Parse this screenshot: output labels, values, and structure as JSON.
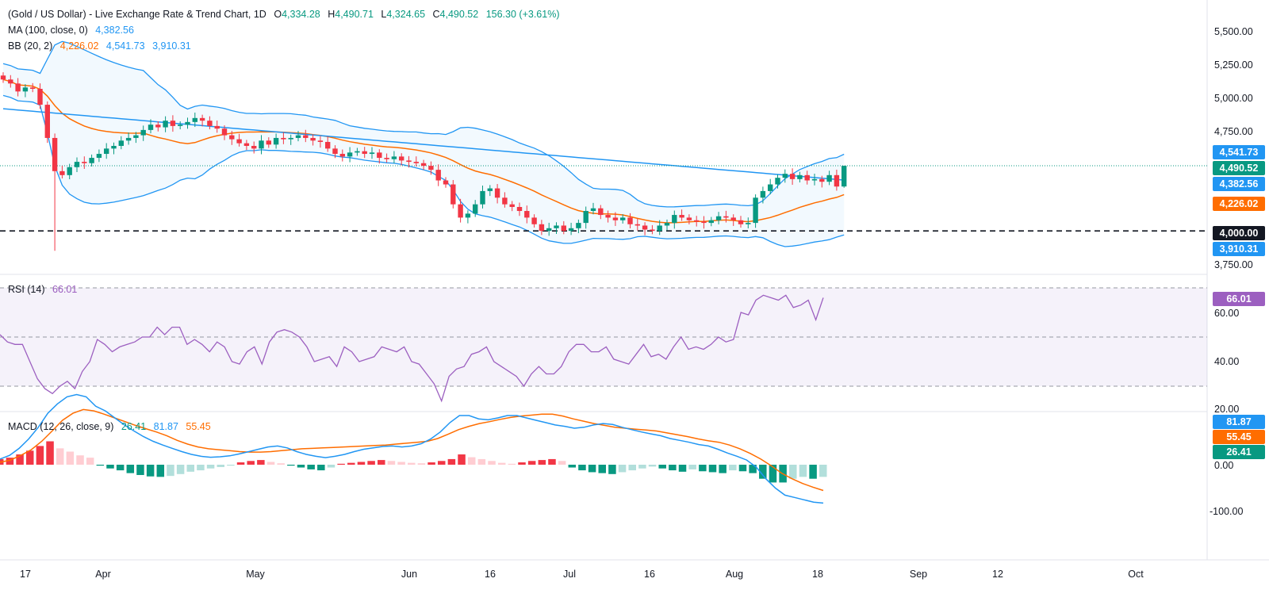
{
  "header": {
    "symbol": "(Gold / US Dollar) - Live Exchange Rate & Trend Chart, 1D",
    "open_label": "O",
    "open": "4,334.28",
    "high_label": "H",
    "high": "4,490.71",
    "low_label": "L",
    "low": "4,324.65",
    "close_label": "C",
    "close": "4,490.52",
    "change": "156.30 (+3.61%)"
  },
  "ma_legend": {
    "name": "MA (100, close, 0)",
    "value": "4,382.56"
  },
  "bb_legend": {
    "name": "BB (20, 2)",
    "basis": "4,226.02",
    "upper": "4,541.73",
    "lower": "3,910.31"
  },
  "rsi_legend": {
    "name": "RSI (14)",
    "value": "66.01"
  },
  "macd_legend": {
    "name": "MACD (12, 26, close, 9)",
    "hist": "26.41",
    "macd": "81.87",
    "signal": "55.45"
  },
  "price_axis": [
    "5,500.00",
    "5,250.00",
    "5,000.00",
    "4,750.00",
    "3,750.00"
  ],
  "price_tags": {
    "upper": "4,541.73",
    "close": "4,490.52",
    "ma": "4,382.56",
    "basis": "4,226.02",
    "level": "4,000.00",
    "lower": "3,910.31"
  },
  "rsi_axis": [
    "60.00",
    "40.00",
    "20.00"
  ],
  "rsi_tag": "66.01",
  "macd_axis": [
    "0.00",
    "-100.00"
  ],
  "macd_tags": {
    "macd": "81.87",
    "signal": "55.45",
    "hist": "26.41"
  },
  "x_axis": [
    "17",
    "Apr",
    "May",
    "Jun",
    "16",
    "Jul",
    "16",
    "Aug",
    "18",
    "Sep",
    "12",
    "Oct"
  ],
  "colors": {
    "up": "#089981",
    "down": "#f23645",
    "ma": "#2196f3",
    "bb_basis": "#ff6d00",
    "bb_band": "#2196f3",
    "rsi": "#9c5fc0",
    "macd": "#2196f3",
    "signal": "#ff6d00"
  },
  "chart_data": [
    {
      "type": "candlestick",
      "title": "Gold / US Dollar, 1D",
      "ylim": [
        3700,
        5600
      ],
      "horizontal_level": 4000,
      "last": {
        "open": 4334.28,
        "high": 4490.71,
        "low": 4324.65,
        "close": 4490.52
      },
      "close_series_approx": [
        5140,
        5110,
        5050,
        5080,
        5070,
        4950,
        4700,
        4450,
        4420,
        4480,
        4520,
        4510,
        4550,
        4580,
        4620,
        4640,
        4680,
        4700,
        4720,
        4760,
        4800,
        4780,
        4830,
        4790,
        4800,
        4820,
        4850,
        4830,
        4790,
        4770,
        4720,
        4690,
        4660,
        4640,
        4620,
        4680,
        4650,
        4700,
        4690,
        4700,
        4720,
        4700,
        4680,
        4670,
        4620,
        4580,
        4560,
        4590,
        4600,
        4580,
        4590,
        4550,
        4540,
        4560,
        4530,
        4520,
        4510,
        4490,
        4460,
        4380,
        4350,
        4200,
        4100,
        4130,
        4200,
        4300,
        4320,
        4250,
        4200,
        4180,
        4150,
        4100,
        4050,
        4000,
        4020,
        4040,
        4000,
        4020,
        4060,
        4150,
        4170,
        4120,
        4100,
        4080,
        4100,
        4050,
        4040,
        4010,
        4000,
        4040,
        4060,
        4120,
        4100,
        4080,
        4070,
        4060,
        4080,
        4110,
        4100,
        4080,
        4050,
        4060,
        4250,
        4300,
        4350,
        4400,
        4430,
        4390,
        4420,
        4380,
        4390,
        4370,
        4420,
        4334,
        4490
      ],
      "series": [
        {
          "name": "MA (100, close, 0)",
          "last": 4382.56
        },
        {
          "name": "BB (20, 2)",
          "basis_last": 4226.02,
          "upper_last": 4541.73,
          "lower_last": 3910.31
        }
      ]
    },
    {
      "type": "line",
      "title": "RSI (14)",
      "ylim": [
        18,
        72
      ],
      "bands": [
        30,
        50,
        70
      ],
      "last": 66.01,
      "values": [
        51,
        48,
        47,
        47,
        40,
        33,
        29,
        27,
        30,
        32,
        29,
        36,
        40,
        49,
        47,
        44,
        46,
        47,
        48,
        50,
        50,
        54,
        51,
        54,
        54,
        47,
        49,
        47,
        44,
        48,
        46,
        40,
        39,
        44,
        46,
        39,
        48,
        52,
        53,
        52,
        50,
        46,
        40,
        41,
        42,
        38,
        46,
        44,
        40,
        41,
        42,
        46,
        45,
        44,
        46,
        40,
        39,
        35,
        31,
        24,
        34,
        37,
        38,
        43,
        44,
        46,
        40,
        38,
        36,
        34,
        30,
        35,
        38,
        35,
        35,
        38,
        44,
        47,
        47,
        44,
        44,
        46,
        41,
        40,
        39,
        43,
        47,
        42,
        43,
        41,
        46,
        50,
        45,
        46,
        45,
        47,
        50,
        48,
        49,
        60,
        59,
        65,
        67,
        66,
        65,
        67,
        62,
        63,
        65,
        57,
        66
      ]
    },
    {
      "type": "line",
      "title": "MACD (12, 26, close, 9)",
      "ylim": [
        -160,
        110
      ],
      "last": {
        "macd": 81.87,
        "signal": 55.45,
        "histogram": 26.41
      },
      "macd": [
        -12,
        -20,
        -35,
        -55,
        -80,
        -110,
        -130,
        -145,
        -150,
        -145,
        -125,
        -115,
        -100,
        -85,
        -72,
        -60,
        -50,
        -42,
        -35,
        -28,
        -22,
        -18,
        -16,
        -17,
        -19,
        -23,
        -28,
        -33,
        -38,
        -40,
        -36,
        -28,
        -22,
        -18,
        -15,
        -18,
        -22,
        -28,
        -33,
        -36,
        -39,
        -40,
        -38,
        -40,
        -45,
        -55,
        -70,
        -90,
        -105,
        -105,
        -98,
        -96,
        -100,
        -105,
        -105,
        -100,
        -95,
        -90,
        -85,
        -82,
        -78,
        -80,
        -85,
        -88,
        -86,
        -80,
        -75,
        -70,
        -66,
        -62,
        -56,
        -52,
        -48,
        -43,
        -40,
        -33,
        -25,
        -18,
        -10,
        5,
        30,
        50,
        65,
        70,
        75,
        80,
        82
      ],
      "signal": [
        -5,
        -10,
        -20,
        -32,
        -50,
        -72,
        -95,
        -110,
        -118,
        -115,
        -108,
        -100,
        -92,
        -84,
        -77,
        -70,
        -62,
        -52,
        -44,
        -38,
        -34,
        -32,
        -30,
        -28,
        -27,
        -27,
        -28,
        -30,
        -32,
        -34,
        -35,
        -36,
        -37,
        -38,
        -39,
        -40,
        -41,
        -42,
        -44,
        -46,
        -48,
        -50,
        -56,
        -65,
        -75,
        -82,
        -88,
        -92,
        -97,
        -101,
        -104,
        -106,
        -108,
        -108,
        -104,
        -98,
        -93,
        -88,
        -84,
        -80,
        -78,
        -76,
        -74,
        -72,
        -68,
        -64,
        -60,
        -55,
        -51,
        -48,
        -42,
        -34,
        -24,
        -12,
        2,
        18,
        30,
        40,
        48,
        55
      ],
      "histogram": [
        -12,
        -15,
        -22,
        -30,
        -40,
        -50,
        -35,
        -28,
        -20,
        -15,
        2,
        8,
        12,
        18,
        22,
        25,
        26,
        24,
        20,
        15,
        12,
        8,
        5,
        2,
        -5,
        -8,
        -10,
        -6,
        -3,
        2,
        6,
        10,
        12,
        6,
        -2,
        -4,
        -6,
        -8,
        -10,
        -8,
        -6,
        -4,
        -3,
        -5,
        -8,
        -12,
        -22,
        -16,
        -12,
        -8,
        -4,
        -2,
        -5,
        -8,
        -10,
        -12,
        -8,
        6,
        12,
        16,
        18,
        20,
        16,
        12,
        8,
        4,
        8,
        12,
        15,
        10,
        14,
        16,
        18,
        12,
        14,
        18,
        30,
        38,
        38,
        30,
        26,
        30,
        26
      ]
    }
  ]
}
